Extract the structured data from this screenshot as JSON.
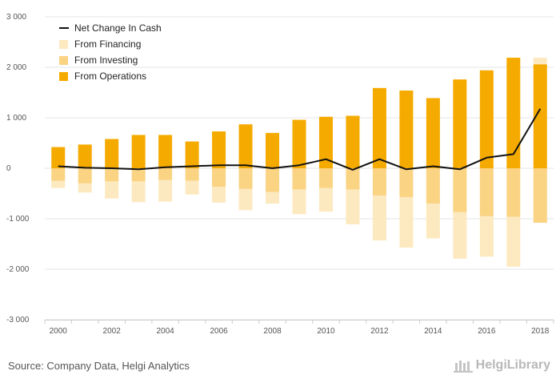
{
  "chart_data": {
    "type": "bar",
    "categories": [
      "2000",
      "2001",
      "2002",
      "2003",
      "2004",
      "2005",
      "2006",
      "2007",
      "2008",
      "2009",
      "2010",
      "2011",
      "2012",
      "2013",
      "2014",
      "2015",
      "2016",
      "2017",
      "2018"
    ],
    "x_tick_labels": [
      "2000",
      "",
      "2002",
      "",
      "2004",
      "",
      "2006",
      "",
      "2008",
      "",
      "2010",
      "",
      "2012",
      "",
      "2014",
      "",
      "2016",
      "",
      "2018"
    ],
    "y_ticks": [
      -3000,
      -2000,
      -1000,
      0,
      1000,
      2000,
      3000
    ],
    "y_tick_labels": [
      "-3 000",
      "-2 000",
      "-1 000",
      "0",
      "1 000",
      "2 000",
      "3 000"
    ],
    "ylim": [
      -3000,
      3000
    ],
    "grid": "horizontal",
    "legend_position": "top-left",
    "series": [
      {
        "name": "From Operations",
        "kind": "bar",
        "color": "#F5AA00",
        "values": [
          420,
          470,
          580,
          660,
          660,
          530,
          730,
          870,
          700,
          960,
          1020,
          1040,
          1590,
          1540,
          1390,
          1760,
          1940,
          2190,
          2060
        ]
      },
      {
        "name": "From Investing",
        "kind": "bar",
        "color": "#FAD383",
        "values": [
          -250,
          -300,
          -260,
          -260,
          -230,
          -250,
          -370,
          -410,
          -470,
          -420,
          -390,
          -420,
          -540,
          -570,
          -700,
          -870,
          -950,
          -960,
          -1080
        ]
      },
      {
        "name": "From Financing",
        "kind": "bar",
        "color": "#FCE9BF",
        "values": [
          -140,
          -180,
          -340,
          -410,
          -430,
          -270,
          -310,
          -420,
          -230,
          -490,
          -470,
          -690,
          -890,
          -1000,
          -690,
          -920,
          -800,
          -990,
          130
        ]
      },
      {
        "name": "Net Change In Cash",
        "kind": "line",
        "color": "#111111",
        "values": [
          40,
          10,
          0,
          -20,
          20,
          40,
          60,
          60,
          0,
          60,
          180,
          -30,
          180,
          -20,
          40,
          -20,
          210,
          280,
          1180
        ]
      }
    ]
  },
  "footer": {
    "source_text": "Source: Company Data, Helgi Analytics",
    "brand_text": "HelgiLibrary"
  }
}
